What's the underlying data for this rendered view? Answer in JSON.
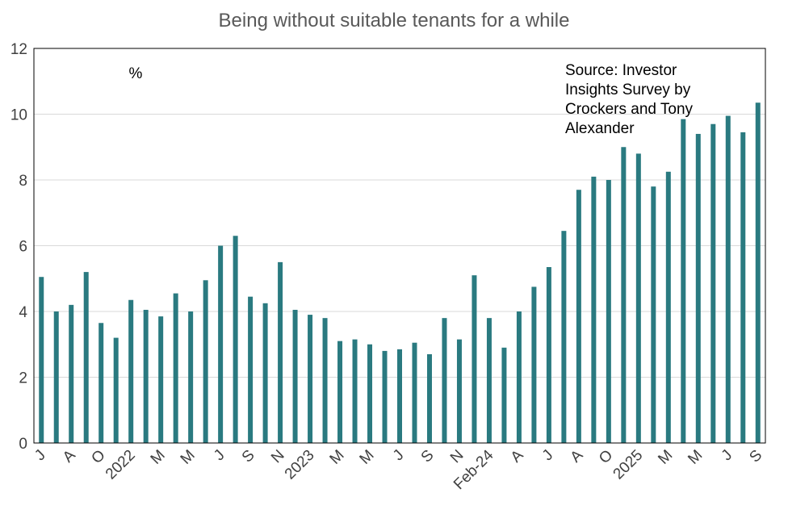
{
  "chart_data": {
    "type": "bar",
    "title": "Being without suitable tenants for a while",
    "unit_label": "%",
    "annotation": "Source: Investor Insights Survey by Crockers and Tony Alexander",
    "categories": [
      "J",
      null,
      "A",
      null,
      "O",
      null,
      "2022",
      null,
      "M",
      null,
      "M",
      null,
      "J",
      null,
      "S",
      null,
      "N",
      null,
      "2023",
      null,
      "M",
      null,
      "M",
      null,
      "J",
      null,
      "S",
      null,
      "N",
      null,
      "Feb-24",
      null,
      "A",
      null,
      "J",
      null,
      "A",
      null,
      "O",
      null,
      "2025",
      null,
      "M",
      null,
      "M",
      null,
      "J",
      null,
      "S"
    ],
    "values": [
      5.05,
      4.0,
      4.2,
      5.2,
      3.65,
      3.2,
      4.35,
      4.05,
      3.85,
      4.55,
      4.0,
      4.95,
      6.0,
      6.3,
      4.45,
      4.25,
      5.5,
      4.05,
      3.9,
      3.8,
      3.1,
      3.15,
      3.0,
      2.8,
      2.85,
      3.05,
      2.7,
      3.8,
      3.15,
      5.1,
      3.8,
      2.9,
      4.0,
      4.75,
      5.35,
      6.45,
      7.7,
      8.1,
      8.0,
      9.0,
      8.8,
      7.8,
      8.25,
      9.85,
      9.4,
      9.7,
      9.95,
      9.45,
      10.35
    ],
    "color": "#2a7a80",
    "ylim": [
      0,
      12
    ],
    "yticks": [
      0,
      2,
      4,
      6,
      8,
      10,
      12
    ],
    "grid": true
  }
}
